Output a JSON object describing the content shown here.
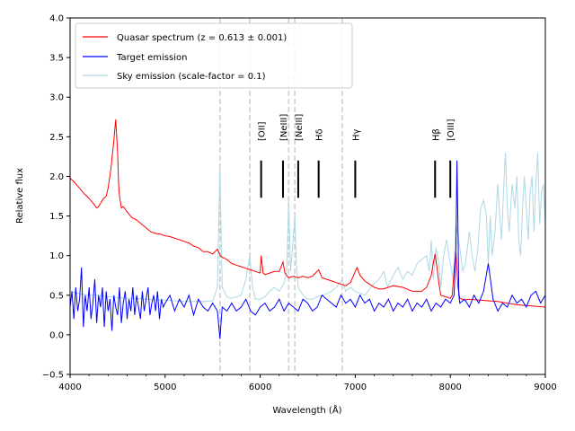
{
  "chart_data": {
    "type": "line",
    "xlabel": "Wavelength (Å)",
    "ylabel": "Relative flux",
    "xlim": [
      4000,
      9000
    ],
    "ylim": [
      -0.5,
      4.0
    ],
    "xticks": [
      4000,
      5000,
      6000,
      7000,
      8000,
      9000
    ],
    "yticks": [
      -0.5,
      0.0,
      0.5,
      1.0,
      1.5,
      2.0,
      2.5,
      3.0,
      3.5,
      4.0
    ],
    "xtick_labels": [
      "4000",
      "5000",
      "6000",
      "7000",
      "8000",
      "9000"
    ],
    "ytick_labels": [
      "−0.5",
      "0.0",
      "0.5",
      "1.0",
      "1.5",
      "2.0",
      "2.5",
      "3.0",
      "3.5",
      "4.0"
    ],
    "legend": {
      "location": "upper-left",
      "entries": [
        {
          "label": "Quasar spectrum (z = 0.613 ± 0.001)",
          "color": "#ff0000"
        },
        {
          "label": "Target emission",
          "color": "#0000ff"
        },
        {
          "label": "Sky emission (scale-factor = 0.1)",
          "color": "#add8e6"
        }
      ]
    },
    "sky_line_markers": [
      5577,
      5890,
      6300,
      6364,
      6863
    ],
    "sky_marker_color": "#cccccc",
    "emission_lines": [
      {
        "label": "[OII]",
        "x": 6010
      },
      {
        "label": "[NeIII]",
        "x": 6240
      },
      {
        "label": "[NeIII]",
        "x": 6400
      },
      {
        "label": "Hδ",
        "x": 6615
      },
      {
        "label": "Hγ",
        "x": 7000
      },
      {
        "label": "Hβ",
        "x": 7840
      },
      {
        "label": "[OIII]",
        "x": 8000
      }
    ],
    "emission_marker_range": [
      1.73,
      2.2
    ],
    "series": [
      {
        "name": "Sky emission (scale-factor = 0.1)",
        "color": "#add8e6",
        "x": [
          4000,
          4100,
          4200,
          4300,
          4400,
          4500,
          4600,
          4700,
          4800,
          4900,
          5000,
          5100,
          5200,
          5300,
          5400,
          5500,
          5550,
          5577,
          5600,
          5650,
          5700,
          5800,
          5850,
          5890,
          5920,
          5950,
          6000,
          6050,
          6100,
          6150,
          6200,
          6250,
          6280,
          6300,
          6320,
          6340,
          6364,
          6380,
          6400,
          6450,
          6500,
          6550,
          6600,
          6650,
          6700,
          6750,
          6800,
          6863,
          6900,
          6950,
          7000,
          7100,
          7200,
          7250,
          7300,
          7340,
          7400,
          7450,
          7500,
          7550,
          7600,
          7650,
          7700,
          7750,
          7780,
          7800,
          7820,
          7850,
          7880,
          7900,
          7930,
          7960,
          8000,
          8030,
          8060,
          8100,
          8130,
          8160,
          8200,
          8230,
          8260,
          8290,
          8320,
          8350,
          8380,
          8400,
          8420,
          8440,
          8470,
          8500,
          8520,
          8540,
          8560,
          8580,
          8600,
          8620,
          8650,
          8680,
          8700,
          8720,
          8740,
          8760,
          8780,
          8800,
          8820,
          8840,
          8860,
          8880,
          8900,
          8920,
          8940,
          8960,
          8980,
          9000
        ],
        "y": [
          0.55,
          0.52,
          0.5,
          0.5,
          0.48,
          0.47,
          0.46,
          0.46,
          0.45,
          0.44,
          0.44,
          0.43,
          0.42,
          0.42,
          0.42,
          0.43,
          0.6,
          2.1,
          0.6,
          0.48,
          0.46,
          0.5,
          0.7,
          1.0,
          0.6,
          0.45,
          0.45,
          0.48,
          0.55,
          0.6,
          0.55,
          0.65,
          0.8,
          1.7,
          0.8,
          1.1,
          1.5,
          0.9,
          0.6,
          0.5,
          0.45,
          0.45,
          0.48,
          0.5,
          0.52,
          0.55,
          0.6,
          0.7,
          0.55,
          0.6,
          0.55,
          0.5,
          0.65,
          0.7,
          0.8,
          0.6,
          0.75,
          0.85,
          0.7,
          0.8,
          0.75,
          0.9,
          0.95,
          1.0,
          0.8,
          1.2,
          0.7,
          1.1,
          0.9,
          0.6,
          1.0,
          1.2,
          0.9,
          0.7,
          1.4,
          1.1,
          0.8,
          0.9,
          1.3,
          1.0,
          0.8,
          1.1,
          1.6,
          1.7,
          1.5,
          0.9,
          1.5,
          1.0,
          1.3,
          1.9,
          1.5,
          1.2,
          1.8,
          2.3,
          1.6,
          1.3,
          1.9,
          1.6,
          2.0,
          1.2,
          1.0,
          1.6,
          2.0,
          1.6,
          1.2,
          1.8,
          2.0,
          1.3,
          1.9,
          2.3,
          1.4,
          1.8,
          1.9,
          1.4
        ]
      },
      {
        "name": "Quasar spectrum",
        "color": "#ff0000",
        "x": [
          4000,
          4050,
          4100,
          4150,
          4200,
          4250,
          4280,
          4300,
          4330,
          4350,
          4380,
          4400,
          4430,
          4460,
          4480,
          4500,
          4510,
          4520,
          4540,
          4560,
          4600,
          4650,
          4700,
          4750,
          4800,
          4850,
          4900,
          4950,
          5000,
          5050,
          5100,
          5150,
          5200,
          5250,
          5300,
          5350,
          5400,
          5450,
          5500,
          5550,
          5580,
          5600,
          5650,
          5700,
          5750,
          5800,
          5850,
          5900,
          5950,
          6000,
          6010,
          6030,
          6050,
          6100,
          6150,
          6200,
          6240,
          6260,
          6300,
          6350,
          6400,
          6450,
          6500,
          6550,
          6615,
          6650,
          6700,
          6750,
          6800,
          6850,
          6900,
          6950,
          7000,
          7020,
          7050,
          7100,
          7150,
          7200,
          7250,
          7300,
          7400,
          7500,
          7600,
          7700,
          7750,
          7800,
          7820,
          7840,
          7860,
          7880,
          7900,
          7950,
          8000,
          8020,
          8040,
          8060,
          8080,
          8100,
          8150,
          8200,
          8300,
          8400,
          8500,
          8600,
          8700,
          8800,
          8900,
          9000
        ],
        "y": [
          1.98,
          1.92,
          1.85,
          1.78,
          1.72,
          1.65,
          1.6,
          1.62,
          1.68,
          1.72,
          1.75,
          1.85,
          2.1,
          2.45,
          2.72,
          2.3,
          1.9,
          1.75,
          1.6,
          1.62,
          1.55,
          1.48,
          1.45,
          1.4,
          1.35,
          1.3,
          1.28,
          1.27,
          1.25,
          1.24,
          1.22,
          1.2,
          1.18,
          1.16,
          1.12,
          1.1,
          1.05,
          1.05,
          1.02,
          1.08,
          1.0,
          0.98,
          0.95,
          0.9,
          0.88,
          0.86,
          0.84,
          0.82,
          0.8,
          0.78,
          1.0,
          0.78,
          0.76,
          0.78,
          0.8,
          0.8,
          0.92,
          0.78,
          0.72,
          0.74,
          0.72,
          0.74,
          0.72,
          0.74,
          0.82,
          0.72,
          0.7,
          0.68,
          0.66,
          0.64,
          0.62,
          0.66,
          0.8,
          0.85,
          0.75,
          0.68,
          0.64,
          0.6,
          0.58,
          0.58,
          0.62,
          0.6,
          0.55,
          0.55,
          0.6,
          0.75,
          0.9,
          1.02,
          0.85,
          0.65,
          0.5,
          0.48,
          0.46,
          0.5,
          0.8,
          1.05,
          0.6,
          0.46,
          0.44,
          0.45,
          0.44,
          0.43,
          0.42,
          0.4,
          0.38,
          0.37,
          0.36,
          0.35
        ]
      },
      {
        "name": "Target emission",
        "color": "#0000ff",
        "x": [
          4000,
          4020,
          4040,
          4060,
          4080,
          4100,
          4120,
          4140,
          4160,
          4180,
          4200,
          4220,
          4240,
          4260,
          4280,
          4300,
          4320,
          4340,
          4360,
          4380,
          4400,
          4420,
          4440,
          4460,
          4480,
          4500,
          4520,
          4540,
          4560,
          4580,
          4600,
          4620,
          4640,
          4660,
          4680,
          4700,
          4720,
          4740,
          4760,
          4780,
          4800,
          4820,
          4840,
          4860,
          4880,
          4900,
          4920,
          4940,
          4960,
          4980,
          5000,
          5050,
          5100,
          5150,
          5200,
          5250,
          5300,
          5350,
          5400,
          5450,
          5500,
          5550,
          5577,
          5600,
          5650,
          5700,
          5750,
          5800,
          5850,
          5900,
          5950,
          6000,
          6050,
          6100,
          6150,
          6200,
          6250,
          6300,
          6350,
          6400,
          6450,
          6500,
          6550,
          6600,
          6650,
          6700,
          6750,
          6800,
          6850,
          6900,
          6950,
          7000,
          7050,
          7100,
          7150,
          7200,
          7250,
          7300,
          7350,
          7400,
          7450,
          7500,
          7550,
          7600,
          7650,
          7700,
          7750,
          7800,
          7850,
          7900,
          7950,
          8000,
          8040,
          8060,
          8070,
          8080,
          8090,
          8100,
          8150,
          8200,
          8250,
          8300,
          8350,
          8400,
          8450,
          8500,
          8550,
          8600,
          8650,
          8700,
          8750,
          8800,
          8850,
          8900,
          8950,
          9000
        ],
        "y": [
          0.35,
          0.55,
          0.2,
          0.6,
          0.3,
          0.45,
          0.85,
          0.1,
          0.5,
          0.3,
          0.6,
          0.2,
          0.4,
          0.7,
          0.15,
          0.5,
          0.35,
          0.6,
          0.1,
          0.55,
          0.3,
          0.45,
          0.05,
          0.5,
          0.35,
          0.25,
          0.6,
          0.15,
          0.4,
          0.55,
          0.2,
          0.45,
          0.3,
          0.6,
          0.25,
          0.5,
          0.35,
          0.2,
          0.55,
          0.3,
          0.45,
          0.6,
          0.25,
          0.4,
          0.5,
          0.3,
          0.55,
          0.2,
          0.45,
          0.35,
          0.4,
          0.5,
          0.3,
          0.45,
          0.35,
          0.5,
          0.25,
          0.45,
          0.35,
          0.3,
          0.4,
          0.3,
          -0.05,
          0.35,
          0.3,
          0.4,
          0.3,
          0.35,
          0.45,
          0.3,
          0.25,
          0.35,
          0.4,
          0.3,
          0.35,
          0.45,
          0.3,
          0.4,
          0.35,
          0.3,
          0.45,
          0.4,
          0.3,
          0.35,
          0.5,
          0.45,
          0.4,
          0.35,
          0.5,
          0.4,
          0.45,
          0.35,
          0.5,
          0.4,
          0.45,
          0.3,
          0.4,
          0.35,
          0.45,
          0.3,
          0.4,
          0.35,
          0.45,
          0.3,
          0.4,
          0.35,
          0.45,
          0.3,
          0.4,
          0.35,
          0.45,
          0.4,
          0.5,
          1.1,
          2.2,
          1.4,
          0.5,
          0.4,
          0.45,
          0.35,
          0.5,
          0.4,
          0.55,
          0.9,
          0.45,
          0.3,
          0.4,
          0.35,
          0.5,
          0.4,
          0.45,
          0.35,
          0.5,
          0.55,
          0.4,
          0.5
        ]
      }
    ]
  }
}
